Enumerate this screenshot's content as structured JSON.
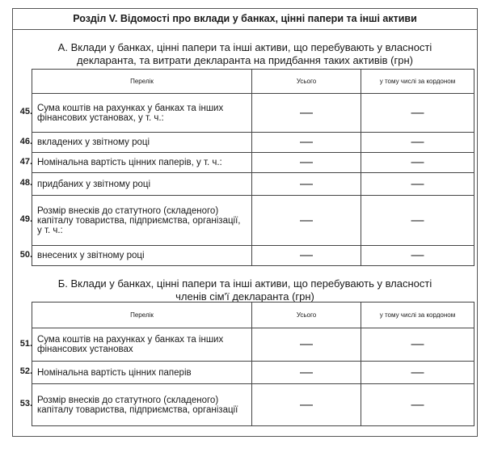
{
  "title": "Розділ V. Відомості про вклади у банках, цінні папери та інші активи",
  "section_a": {
    "title_line1": "А. Вклади у банках, цінні папери та інші активи, що перебувають у власності",
    "title_line2": "декларанта, та витрати декларанта на придбання таких активів (грн)",
    "headers": [
      "Перелік",
      "Усього",
      "у тому числі за кордоном"
    ],
    "rows": [
      {
        "num": "45.",
        "label": "Сума коштів на рахунках у банках та інших фінансових установах, у т. ч.:",
        "total": "—",
        "abroad": "—"
      },
      {
        "num": "46.",
        "label": "вкладених у звітному році",
        "total": "—",
        "abroad": "—"
      },
      {
        "num": "47.",
        "label": "Номінальна вартість цінних паперів, у т. ч.:",
        "total": "—",
        "abroad": "—"
      },
      {
        "num": "48.",
        "label": "придбаних у звітному році",
        "total": "—",
        "abroad": "—"
      },
      {
        "num": "49.",
        "label": "Розмір внесків до статутного (складеного) капіталу товариства, підприємства, організації, у т. ч.:",
        "total": "—",
        "abroad": "—"
      },
      {
        "num": "50.",
        "label": "внесених у звітному році",
        "total": "—",
        "abroad": "—"
      }
    ]
  },
  "section_b": {
    "title_line1": "Б. Вклади у банках, цінні папери та інші активи, що перебувають у власності",
    "title_line2": "членів сім'ї декларанта (грн)",
    "headers": [
      "Перелік",
      "Усього",
      "у тому числі за кордоном"
    ],
    "rows": [
      {
        "num": "51.",
        "label": "Сума коштів на рахунках у банках та інших фінансових установах",
        "total": "—",
        "abroad": "—"
      },
      {
        "num": "52.",
        "label": "Номінальна вартість цінних паперів",
        "total": "—",
        "abroad": "—"
      },
      {
        "num": "53.",
        "label": "Розмір внесків до статутного (складеного) капіталу товариства, підприємства, організації",
        "total": "—",
        "abroad": "—"
      }
    ]
  }
}
